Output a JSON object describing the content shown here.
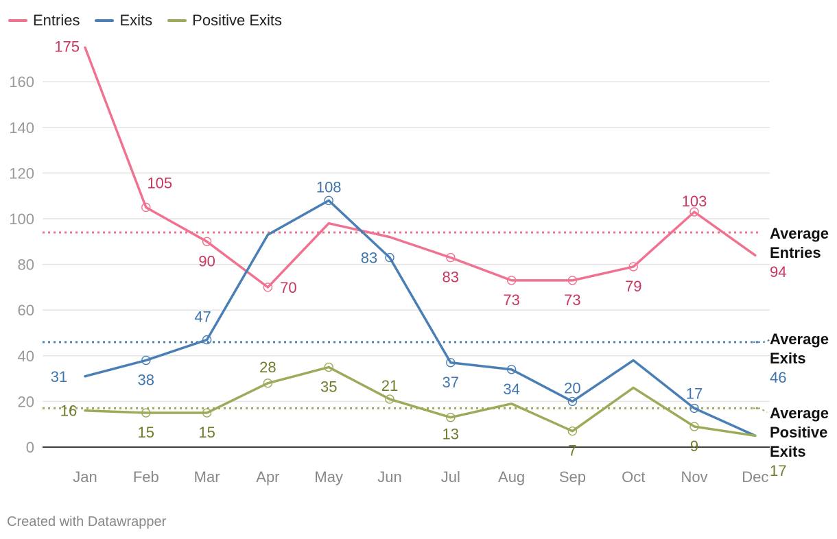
{
  "chart_data": {
    "type": "line",
    "categories": [
      "Jan",
      "Feb",
      "Mar",
      "Apr",
      "May",
      "Jun",
      "Jul",
      "Aug",
      "Sep",
      "Oct",
      "Nov",
      "Dec"
    ],
    "ylim": [
      0,
      175
    ],
    "yticks": [
      0,
      20,
      40,
      60,
      80,
      100,
      120,
      140,
      160
    ],
    "grid": true,
    "legend_position": "top-left",
    "series": [
      {
        "name": "Entries",
        "color": "#f07291",
        "label_color": "#c7375e",
        "values": [
          175,
          105,
          90,
          70,
          98,
          92,
          83,
          73,
          73,
          79,
          103,
          84
        ],
        "labels": [
          "175",
          "105",
          "90",
          "70",
          "",
          "",
          "83",
          "73",
          "73",
          "79",
          "103",
          ""
        ],
        "average": {
          "value": 94,
          "label_lines": [
            "Average",
            "Entries"
          ],
          "value_label": "94"
        }
      },
      {
        "name": "Exits",
        "color": "#4a7fb5",
        "label_color": "#3f76ad",
        "values": [
          31,
          38,
          47,
          93,
          108,
          83,
          37,
          34,
          20,
          38,
          17,
          5
        ],
        "labels": [
          "31",
          "38",
          "47",
          "",
          "108",
          "83",
          "37",
          "34",
          "20",
          "",
          "17",
          ""
        ],
        "average": {
          "value": 46,
          "label_lines": [
            "Average",
            "Exits"
          ],
          "value_label": "46"
        }
      },
      {
        "name": "Positive Exits",
        "color": "#9bab5a",
        "label_color": "#6e7d2a",
        "values": [
          16,
          15,
          15,
          28,
          35,
          21,
          13,
          19,
          7,
          26,
          9,
          5
        ],
        "labels": [
          "16",
          "15",
          "15",
          "28",
          "35",
          "21",
          "13",
          "",
          "7",
          "",
          "9",
          ""
        ],
        "average": {
          "value": 17,
          "label_lines": [
            "Average",
            "Positive",
            "Exits"
          ],
          "value_label": "17"
        }
      }
    ]
  },
  "credit": "Created with Datawrapper"
}
